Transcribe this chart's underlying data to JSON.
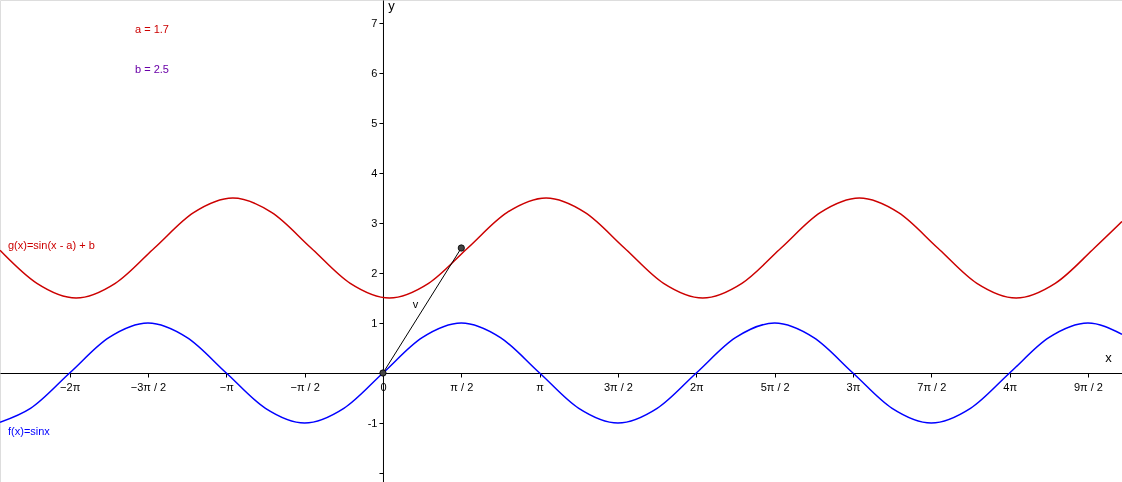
{
  "chart_data": {
    "type": "line",
    "xlabel": "x",
    "ylabel": "y",
    "xlim": [
      -7.68,
      14.82
    ],
    "ylim": [
      -2.18,
      7.46
    ],
    "xticks": [
      {
        "value": -6.2832,
        "label": "−2π"
      },
      {
        "value": -4.7124,
        "label": "−3π / 2"
      },
      {
        "value": -3.1416,
        "label": "−π"
      },
      {
        "value": -1.5708,
        "label": "−π / 2"
      },
      0,
      {
        "value": 1.5708,
        "label": "π / 2"
      },
      {
        "value": 3.1416,
        "label": "π"
      },
      {
        "value": 4.7124,
        "label": "3π / 2"
      },
      {
        "value": 6.2832,
        "label": "2π"
      },
      {
        "value": 7.854,
        "label": "5π / 2"
      },
      {
        "value": 9.4248,
        "label": "3π"
      },
      {
        "value": 10.9956,
        "label": "7π / 2"
      },
      {
        "value": 12.5664,
        "label": "4π"
      },
      {
        "value": 14.1372,
        "label": "9π / 2"
      }
    ],
    "yticks": [
      {
        "value": -2,
        "label": null
      },
      -1,
      1,
      2,
      3,
      4,
      5,
      6,
      7
    ],
    "grid": false,
    "line_style": "solid",
    "annotations": [
      "a = 1.7",
      "b = 2.5"
    ],
    "series": [
      {
        "name": "f(x)=sinx",
        "color": "#0000ff",
        "marker": "none",
        "x": [
          -7.68,
          -7.0686,
          -6.2832,
          -5.4978,
          -4.7124,
          -3.927,
          -3.1416,
          -2.3562,
          -1.5708,
          -0.7854,
          0,
          0.7854,
          1.5708,
          2.3562,
          3.1416,
          3.927,
          4.7124,
          5.4978,
          6.2832,
          7.0686,
          7.854,
          8.6394,
          9.4248,
          10.2102,
          10.9956,
          11.781,
          12.5664,
          13.3518,
          14.1372,
          14.82
        ],
        "values": [
          -0.985,
          -0.707,
          0,
          0.707,
          1,
          0.707,
          0,
          -0.707,
          -1,
          -0.707,
          0,
          0.707,
          1,
          0.707,
          0,
          -0.707,
          -1,
          -0.707,
          0,
          0.707,
          1,
          0.707,
          0,
          -0.707,
          -1,
          -0.707,
          0,
          0.707,
          1,
          0.775
        ]
      },
      {
        "name": "g(x)=sin(x - a) + b",
        "color": "#cc0000",
        "marker": "none",
        "x": [
          -7.68,
          -6.9394,
          -6.154,
          -5.3686,
          -4.5832,
          -3.7978,
          -3.0124,
          -2.227,
          -1.4416,
          -0.6562,
          0.1292,
          0.9146,
          1.7,
          2.4854,
          3.2708,
          4.0562,
          4.8416,
          5.627,
          6.4124,
          7.1978,
          7.9832,
          8.7686,
          9.554,
          10.3394,
          11.1248,
          11.9102,
          12.6956,
          13.481,
          14.2664,
          14.82
        ],
        "values": [
          2.455,
          1.793,
          1.5,
          1.793,
          2.5,
          3.207,
          3.5,
          3.207,
          2.5,
          1.793,
          1.5,
          1.793,
          2.5,
          3.207,
          3.5,
          3.207,
          2.5,
          1.793,
          1.5,
          1.793,
          2.5,
          3.207,
          3.5,
          3.207,
          2.5,
          1.793,
          1.5,
          1.793,
          2.5,
          3.03
        ]
      },
      {
        "name": "v",
        "color": "#000000",
        "marker": "circle",
        "x": [
          0,
          1.5708
        ],
        "values": [
          0,
          2.5
        ]
      }
    ]
  }
}
